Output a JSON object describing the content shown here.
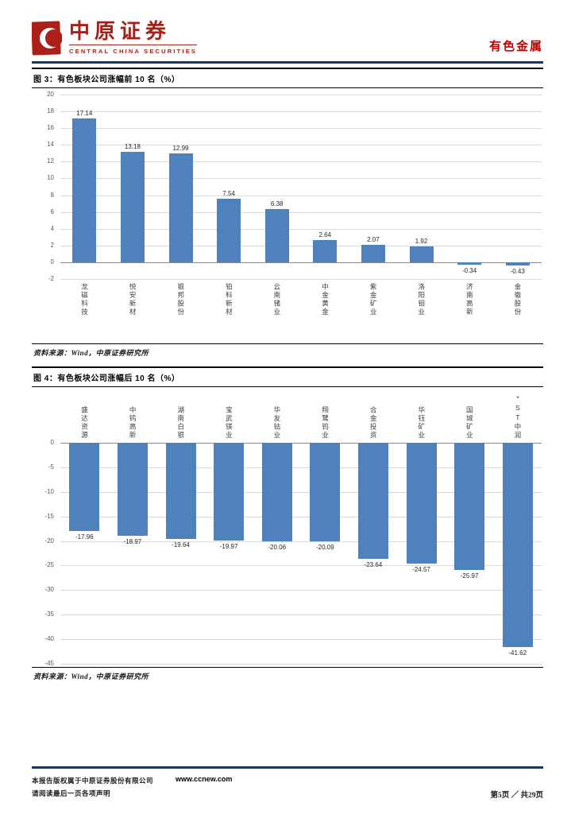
{
  "header": {
    "brand_cn": "中原证券",
    "brand_en": "CENTRAL CHINA SECURITIES",
    "section_label": "有色金属",
    "brand_color": "#a32119"
  },
  "figure3": {
    "title": "图 3：有色板块公司涨幅前 10 名（%）",
    "source": "资料来源：Wind，中原证券研究所"
  },
  "figure4": {
    "title": "图 4：有色板块公司涨幅后 10 名（%）",
    "source": "资料来源：Wind，中原证券研究所"
  },
  "chart_data": [
    {
      "type": "bar",
      "title": "有色板块公司涨幅前10名（%）",
      "categories": [
        "龙磁科技",
        "悦安新材",
        "银邦股份",
        "铂科新材",
        "云南锗业",
        "中金黄金",
        "紫金矿业",
        "洛阳钼业",
        "济南高新",
        "金徽股份"
      ],
      "values": [
        17.14,
        13.18,
        12.99,
        7.54,
        6.38,
        2.64,
        2.07,
        1.92,
        -0.34,
        -0.43
      ],
      "ylim": [
        -2,
        20
      ],
      "ytick_step": 2,
      "bar_color": "#4f81bd",
      "grid": true,
      "label_position": "bottom",
      "legend": "none"
    },
    {
      "type": "bar",
      "title": "有色板块公司涨幅后10名（%）",
      "categories": [
        "盛达资源",
        "中钨高新",
        "湖南白银",
        "宝武镁业",
        "华友钴业",
        "翔鹭钨业",
        "合金投资",
        "华钰矿业",
        "国城矿业",
        "*ST中润"
      ],
      "values": [
        -17.96,
        -18.97,
        -19.64,
        -19.97,
        -20.06,
        -20.09,
        -23.64,
        -24.57,
        -25.97,
        -41.62
      ],
      "ylim": [
        -45,
        0
      ],
      "ytick_step": 5,
      "bar_color": "#4f81bd",
      "grid": true,
      "label_position": "top",
      "legend": "none"
    }
  ],
  "footer": {
    "line1": "本报告版权属于中原证券股份有限公司",
    "line2": "请阅读最后一页各项声明",
    "website": "www.ccnew.com",
    "page_info": "第5页 ／ 共29页"
  }
}
